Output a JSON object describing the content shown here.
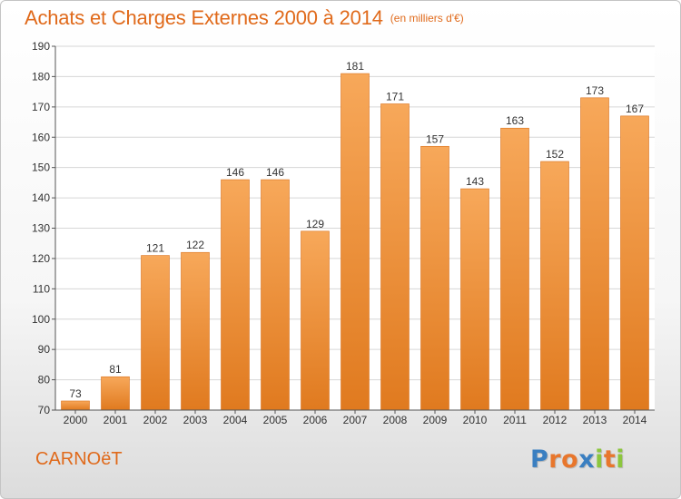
{
  "header": {
    "title": "Achats et Charges Externes 2000 à 2014",
    "subtitle": "(en milliers d'€)"
  },
  "footer": {
    "commune": "CARNOëT",
    "brand": "Proxiti",
    "brand_colors": [
      "#3a7fc1",
      "#e8762c",
      "#e8762c",
      "#3a7fc1",
      "#8cc63e",
      "#e8762c",
      "#8cc63e"
    ]
  },
  "chart_data": {
    "type": "bar",
    "categories": [
      "2000",
      "2001",
      "2002",
      "2003",
      "2004",
      "2005",
      "2006",
      "2007",
      "2008",
      "2009",
      "2010",
      "2011",
      "2012",
      "2013",
      "2014"
    ],
    "values": [
      73,
      81,
      121,
      122,
      146,
      146,
      129,
      181,
      171,
      157,
      143,
      163,
      152,
      173,
      167
    ],
    "ylim": [
      70,
      190
    ],
    "yticks": [
      70,
      80,
      90,
      100,
      110,
      120,
      130,
      140,
      150,
      160,
      170,
      180,
      190
    ],
    "title": "Achats et Charges Externes 2000 à 2014",
    "xlabel": "",
    "ylabel": "",
    "grid": true,
    "bar_color_top": "#f7a85a",
    "bar_color_bottom": "#e07a1f",
    "grid_color": "#d6d6d6",
    "axis_color": "#555555"
  }
}
